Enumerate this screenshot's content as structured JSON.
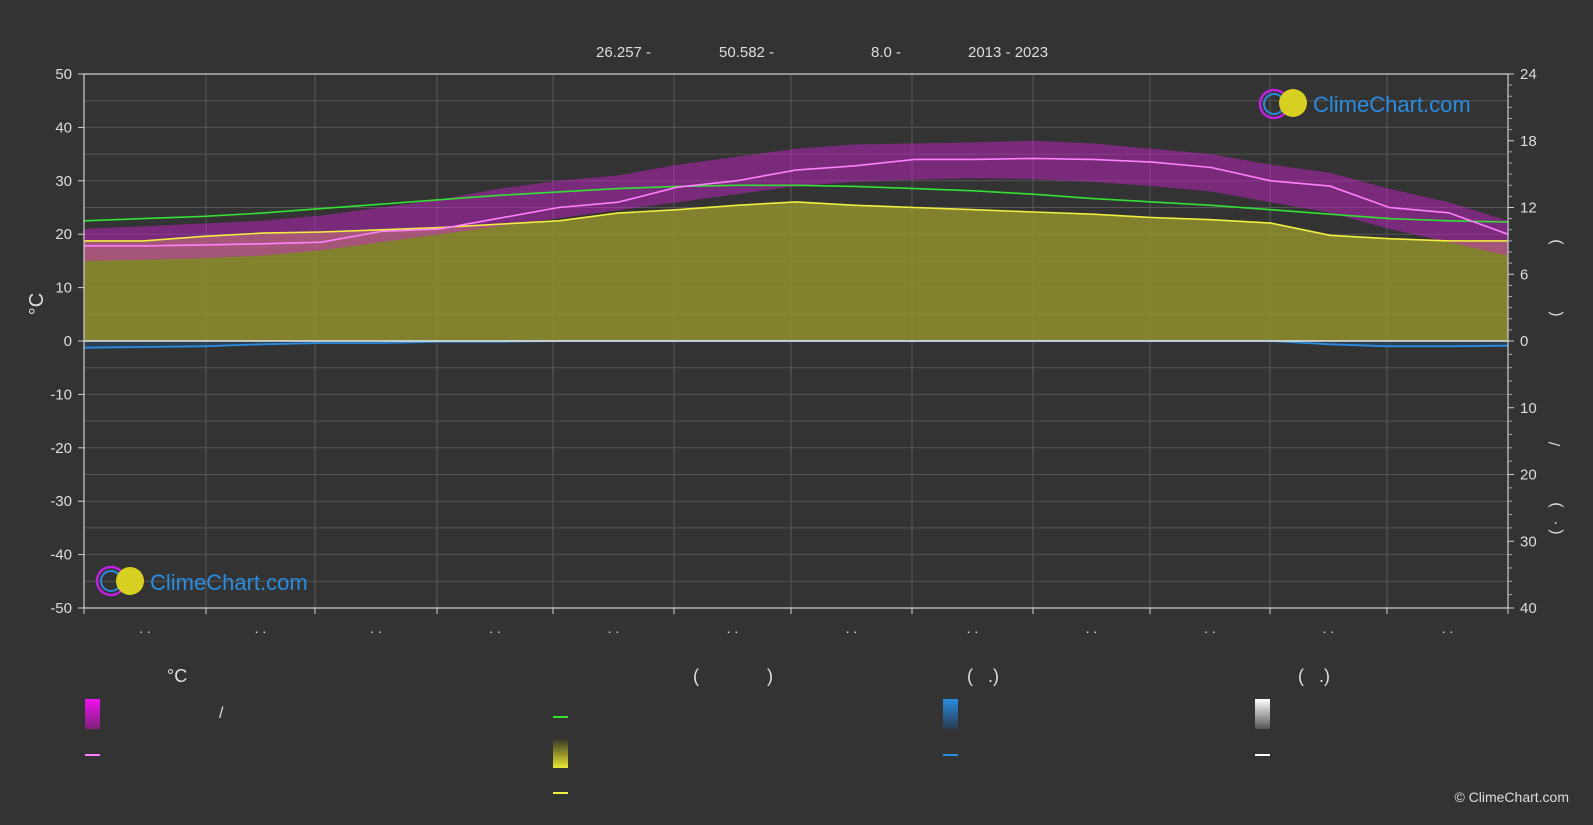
{
  "header": {
    "lat": "26.257 -",
    "lon": "50.582 -",
    "elev": "8.0 -",
    "years": "2013 - 2023"
  },
  "brand": {
    "logo_text": "ClimeChart.com",
    "copyright": "© ClimeChart.com"
  },
  "colors": {
    "background": "#333333",
    "daylight_fill": "#8f8f2e",
    "temp_band": "#d020d0",
    "max_temp_line": "#ff7fff",
    "daylight_line": "#33e033",
    "sunshine_line": "#f0f040",
    "rain_line": "#2a8ce0",
    "brand_blue": "#2a8ce0"
  },
  "legend": {
    "col1_head": "°C",
    "col1_sep": "/",
    "col2_head_open": "(",
    "col2_head_close": ")",
    "col3_head": "(   .)",
    "col4_head": "(   .)"
  },
  "chart_data": {
    "type": "line",
    "title": "",
    "xlabel": "",
    "ylabel_left": "°C",
    "x_tick_labels": [
      ". .",
      ". .",
      ". .",
      ". .",
      ". .",
      ". .",
      ". .",
      ". .",
      ". .",
      ". .",
      ". .",
      ". ."
    ],
    "y_left_ticks": [
      50,
      40,
      30,
      20,
      10,
      0,
      -10,
      -20,
      -30,
      -40,
      -50
    ],
    "y_left_lim": [
      -50,
      50
    ],
    "y_right_top_ticks": [
      24,
      18,
      12,
      6,
      0
    ],
    "y_right_bottom_ticks": [
      10,
      20,
      30,
      40
    ],
    "y_right_label_glyphs": [
      ")",
      "(",
      "/",
      ")",
      "·",
      "("
    ],
    "grid": true,
    "x": [
      0,
      0.5,
      1,
      1.5,
      2,
      2.5,
      3,
      3.5,
      4,
      4.5,
      5,
      5.5,
      6,
      6.5,
      7,
      7.5,
      8,
      8.5,
      9,
      9.5,
      10,
      10.5,
      11,
      11.5,
      12
    ],
    "series": [
      {
        "key": "temp_max",
        "values": [
          17.8,
          17.8,
          18.0,
          18.2,
          18.5,
          20.5,
          21.0,
          23.0,
          25.0,
          26.0,
          28.8,
          30.0,
          32.0,
          32.8,
          34.0,
          34.0,
          34.2,
          34.0,
          33.5,
          32.5,
          30.0,
          29.0,
          25.0,
          24.0,
          20.0
        ]
      },
      {
        "key": "daylight_hours",
        "values": [
          10.8,
          11.0,
          11.2,
          11.5,
          11.9,
          12.3,
          12.7,
          13.1,
          13.4,
          13.7,
          13.9,
          14.0,
          14.0,
          13.9,
          13.7,
          13.5,
          13.2,
          12.8,
          12.5,
          12.2,
          11.8,
          11.4,
          11.0,
          10.8,
          10.7
        ]
      },
      {
        "key": "sunshine_hours",
        "values": [
          9.0,
          9.0,
          9.4,
          9.7,
          9.8,
          10.0,
          10.2,
          10.5,
          10.8,
          11.5,
          11.8,
          12.2,
          12.5,
          12.2,
          12.0,
          11.8,
          11.6,
          11.4,
          11.1,
          10.9,
          10.6,
          9.5,
          9.2,
          9.0,
          9.0
        ]
      },
      {
        "key": "precip_mm",
        "values": [
          1.0,
          0.9,
          0.8,
          0.5,
          0.3,
          0.3,
          0.1,
          0.1,
          0.0,
          0.0,
          0.0,
          0.0,
          0.0,
          0.0,
          0.0,
          0.0,
          0.0,
          0.0,
          0.0,
          0.0,
          0.0,
          0.5,
          0.8,
          0.8,
          0.7
        ]
      },
      {
        "key": "temp_min_band",
        "values": [
          15.0,
          15.2,
          15.5,
          16.0,
          17.0,
          18.5,
          20.0,
          21.5,
          23.0,
          24.5,
          26.0,
          27.5,
          29.0,
          29.8,
          30.2,
          30.5,
          30.3,
          29.8,
          29.0,
          28.0,
          26.0,
          24.0,
          21.0,
          18.5,
          16.0
        ]
      },
      {
        "key": "temp_max_band",
        "values": [
          21.0,
          21.5,
          22.0,
          22.5,
          23.5,
          25.0,
          26.5,
          28.5,
          30.0,
          31.0,
          33.0,
          34.5,
          36.0,
          36.8,
          37.0,
          37.2,
          37.5,
          37.0,
          36.0,
          35.0,
          33.0,
          31.5,
          28.5,
          26.0,
          22.5
        ]
      }
    ]
  }
}
